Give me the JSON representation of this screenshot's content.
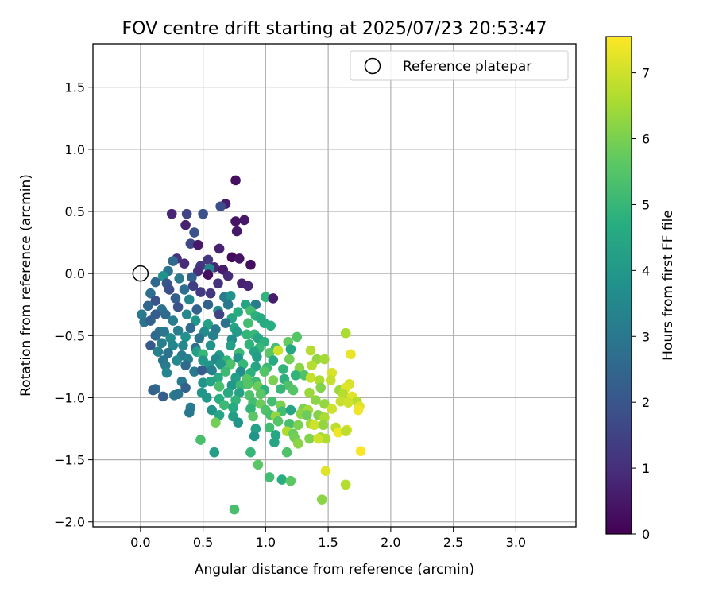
{
  "chart_data": {
    "type": "scatter",
    "title": "FOV centre drift starting at 2025/07/23 20:53:47",
    "xlabel": "Angular distance from reference (arcmin)",
    "ylabel": "Rotation from reference (arcmin)",
    "xlim": [
      -0.38,
      3.48
    ],
    "ylim": [
      -2.04,
      1.85
    ],
    "xticks": [
      0.0,
      0.5,
      1.0,
      1.5,
      2.0,
      2.5,
      3.0
    ],
    "xtick_labels": [
      "0.0",
      "0.5",
      "1.0",
      "1.5",
      "2.0",
      "2.5",
      "3.0"
    ],
    "yticks": [
      1.5,
      1.0,
      0.5,
      0.0,
      -0.5,
      -1.0,
      -1.5,
      -2.0
    ],
    "ytick_labels": [
      "1.5",
      "1.0",
      "0.5",
      "0.0",
      "−0.5",
      "−1.0",
      "−1.5",
      "−2.0"
    ],
    "grid": true,
    "legend": {
      "position": "top-right",
      "entries": [
        {
          "label": "Reference platepar",
          "marker": "open-circle",
          "x": 0.0,
          "y": 0.0
        }
      ]
    },
    "colorbar": {
      "label": "Hours from first FF file",
      "range": [
        0,
        7.55
      ],
      "ticks": [
        0,
        1,
        2,
        3,
        4,
        5,
        6,
        7
      ],
      "tick_labels": [
        "0",
        "1",
        "2",
        "3",
        "4",
        "5",
        "6",
        "7"
      ],
      "colormap": "viridis"
    },
    "points": [
      [
        0.76,
        0.75,
        0.3
      ],
      [
        0.68,
        0.56,
        0.6
      ],
      [
        0.64,
        0.54,
        1.8
      ],
      [
        0.83,
        0.43,
        0.5
      ],
      [
        0.76,
        0.42,
        0.4
      ],
      [
        0.25,
        0.48,
        0.8
      ],
      [
        0.37,
        0.48,
        1.5
      ],
      [
        0.5,
        0.48,
        1.9
      ],
      [
        0.36,
        0.39,
        0.7
      ],
      [
        0.77,
        0.34,
        0.5
      ],
      [
        0.43,
        0.33,
        1.9
      ],
      [
        0.4,
        0.24,
        1.6
      ],
      [
        0.46,
        0.23,
        0.5
      ],
      [
        0.63,
        0.2,
        0.7
      ],
      [
        0.54,
        0.11,
        1.2
      ],
      [
        0.73,
        0.13,
        0.2
      ],
      [
        0.79,
        0.12,
        0.4
      ],
      [
        0.88,
        0.07,
        0.3
      ],
      [
        0.29,
        0.12,
        1.1
      ],
      [
        0.35,
        0.08,
        0.9
      ],
      [
        0.48,
        0.06,
        1.2
      ],
      [
        0.59,
        0.05,
        0.8
      ],
      [
        0.26,
        0.1,
        2.6
      ],
      [
        0.22,
        0.02,
        2.9
      ],
      [
        0.46,
        0.02,
        1.0
      ],
      [
        0.55,
        0.04,
        3.4
      ],
      [
        0.66,
        0.03,
        0.6
      ],
      [
        0.7,
        -0.02,
        0.9
      ],
      [
        0.54,
        -0.01,
        0.3
      ],
      [
        0.41,
        -0.03,
        2.4
      ],
      [
        0.31,
        -0.04,
        3.1
      ],
      [
        0.18,
        -0.02,
        3.8
      ],
      [
        0.21,
        -0.08,
        2.0
      ],
      [
        0.12,
        -0.07,
        2.5
      ],
      [
        0.42,
        -0.1,
        1.4
      ],
      [
        0.62,
        -0.08,
        1.1
      ],
      [
        0.81,
        -0.08,
        0.7
      ],
      [
        0.86,
        -0.1,
        0.8
      ],
      [
        0.08,
        -0.16,
        2.7
      ],
      [
        0.23,
        -0.13,
        1.8
      ],
      [
        0.35,
        -0.13,
        2.7
      ],
      [
        0.48,
        -0.15,
        1.3
      ],
      [
        0.56,
        -0.16,
        1.2
      ],
      [
        0.67,
        -0.19,
        3.1
      ],
      [
        0.72,
        -0.18,
        3.8
      ],
      [
        1.0,
        -0.19,
        4.9
      ],
      [
        1.06,
        -0.2,
        0.6
      ],
      [
        0.12,
        -0.22,
        1.9
      ],
      [
        0.28,
        -0.2,
        2.3
      ],
      [
        0.39,
        -0.21,
        3.4
      ],
      [
        0.54,
        -0.25,
        2.3
      ],
      [
        0.7,
        -0.25,
        3.0
      ],
      [
        0.84,
        -0.25,
        4.4
      ],
      [
        0.92,
        -0.25,
        3.1
      ],
      [
        0.06,
        -0.26,
        2.5
      ],
      [
        0.17,
        -0.29,
        2.8
      ],
      [
        0.3,
        -0.27,
        1.9
      ],
      [
        0.45,
        -0.29,
        2.4
      ],
      [
        0.62,
        -0.3,
        3.6
      ],
      [
        0.78,
        -0.31,
        4.7
      ],
      [
        0.88,
        -0.3,
        5.2
      ],
      [
        0.01,
        -0.33,
        3.1
      ],
      [
        0.12,
        -0.33,
        2.2
      ],
      [
        0.2,
        -0.33,
        2.6
      ],
      [
        0.37,
        -0.33,
        3.5
      ],
      [
        0.63,
        -0.33,
        1.5
      ],
      [
        0.73,
        -0.36,
        4.4
      ],
      [
        0.92,
        -0.34,
        4.8
      ],
      [
        0.96,
        -0.36,
        4.6
      ],
      [
        0.03,
        -0.39,
        2.9
      ],
      [
        0.08,
        -0.38,
        2.3
      ],
      [
        0.26,
        -0.38,
        3.2
      ],
      [
        0.44,
        -0.38,
        3.9
      ],
      [
        0.54,
        -0.41,
        4.3
      ],
      [
        0.68,
        -0.4,
        2.8
      ],
      [
        0.75,
        -0.44,
        4.5
      ],
      [
        0.86,
        -0.4,
        5.2
      ],
      [
        0.99,
        -0.4,
        4.6
      ],
      [
        1.04,
        -0.42,
        4.7
      ],
      [
        0.15,
        -0.47,
        2.7
      ],
      [
        0.19,
        -0.47,
        3.0
      ],
      [
        0.3,
        -0.46,
        3.2
      ],
      [
        0.4,
        -0.44,
        2.6
      ],
      [
        0.51,
        -0.47,
        3.6
      ],
      [
        0.6,
        -0.45,
        3.1
      ],
      [
        0.77,
        -0.47,
        4.1
      ],
      [
        0.85,
        -0.49,
        4.9
      ],
      [
        0.91,
        -0.49,
        5.0
      ],
      [
        0.12,
        -0.5,
        2.6
      ],
      [
        0.24,
        -0.52,
        3.6
      ],
      [
        0.36,
        -0.51,
        3.8
      ],
      [
        0.47,
        -0.52,
        2.9
      ],
      [
        0.58,
        -0.5,
        3.3
      ],
      [
        0.73,
        -0.53,
        3.7
      ],
      [
        0.94,
        -0.52,
        4.4
      ],
      [
        0.99,
        -0.55,
        4.8
      ],
      [
        1.18,
        -0.55,
        5.7
      ],
      [
        1.25,
        -0.51,
        5.5
      ],
      [
        1.64,
        -0.48,
        6.6
      ],
      [
        0.08,
        -0.58,
        2.1
      ],
      [
        0.17,
        -0.56,
        3.2
      ],
      [
        0.26,
        -0.58,
        3.4
      ],
      [
        0.34,
        -0.58,
        3.5
      ],
      [
        0.44,
        -0.6,
        2.7
      ],
      [
        0.56,
        -0.58,
        3.8
      ],
      [
        0.72,
        -0.58,
        4.2
      ],
      [
        0.87,
        -0.57,
        4.9
      ],
      [
        0.95,
        -0.6,
        5.0
      ],
      [
        1.08,
        -0.6,
        5.2
      ],
      [
        1.2,
        -0.61,
        4.5
      ],
      [
        0.14,
        -0.63,
        3.3
      ],
      [
        0.22,
        -0.64,
        2.8
      ],
      [
        0.33,
        -0.66,
        3.1
      ],
      [
        0.45,
        -0.63,
        4.2
      ],
      [
        0.5,
        -0.65,
        5.0
      ],
      [
        0.63,
        -0.66,
        4.1
      ],
      [
        0.79,
        -0.64,
        5.1
      ],
      [
        0.91,
        -0.63,
        4.4
      ],
      [
        1.03,
        -0.64,
        5.6
      ],
      [
        1.1,
        -0.62,
        7.0
      ],
      [
        1.36,
        -0.62,
        6.7
      ],
      [
        1.68,
        -0.65,
        7.3
      ],
      [
        0.18,
        -0.7,
        2.9
      ],
      [
        0.29,
        -0.7,
        3.5
      ],
      [
        0.38,
        -0.69,
        3.3
      ],
      [
        0.5,
        -0.7,
        4.0
      ],
      [
        0.6,
        -0.69,
        3.5
      ],
      [
        0.69,
        -0.7,
        4.9
      ],
      [
        0.78,
        -0.68,
        3.8
      ],
      [
        0.93,
        -0.67,
        4.2
      ],
      [
        1.06,
        -0.7,
        4.6
      ],
      [
        1.19,
        -0.69,
        5.9
      ],
      [
        1.41,
        -0.69,
        6.3
      ],
      [
        1.47,
        -0.69,
        6.5
      ],
      [
        0.2,
        -0.74,
        3.1
      ],
      [
        0.36,
        -0.74,
        2.6
      ],
      [
        0.55,
        -0.74,
        3.9
      ],
      [
        0.64,
        -0.73,
        4.0
      ],
      [
        0.72,
        -0.73,
        5.4
      ],
      [
        0.82,
        -0.73,
        5.0
      ],
      [
        0.92,
        -0.75,
        4.4
      ],
      [
        1.01,
        -0.76,
        5.1
      ],
      [
        1.14,
        -0.77,
        4.9
      ],
      [
        1.27,
        -0.76,
        6.2
      ],
      [
        1.37,
        -0.74,
        6.7
      ],
      [
        0.21,
        -0.8,
        3.4
      ],
      [
        0.43,
        -0.79,
        3.1
      ],
      [
        0.49,
        -0.78,
        2.2
      ],
      [
        0.57,
        -0.78,
        3.3
      ],
      [
        0.68,
        -0.79,
        5.1
      ],
      [
        0.8,
        -0.79,
        3.7
      ],
      [
        0.88,
        -0.8,
        4.8
      ],
      [
        0.99,
        -0.79,
        5.5
      ],
      [
        1.24,
        -0.82,
        4.9
      ],
      [
        1.31,
        -0.82,
        5.4
      ],
      [
        1.36,
        -0.84,
        6.9
      ],
      [
        1.53,
        -0.8,
        7.1
      ],
      [
        0.62,
        -0.84,
        4.6
      ],
      [
        0.76,
        -0.84,
        4.2
      ],
      [
        0.85,
        -0.85,
        5.6
      ],
      [
        0.92,
        -0.87,
        5.1
      ],
      [
        1.06,
        -0.86,
        6.0
      ],
      [
        1.15,
        -0.85,
        4.8
      ],
      [
        1.43,
        -0.86,
        6.6
      ],
      [
        1.52,
        -0.86,
        6.9
      ],
      [
        0.33,
        -0.87,
        3.0
      ],
      [
        0.5,
        -0.88,
        3.9
      ],
      [
        0.56,
        -0.87,
        4.4
      ],
      [
        0.73,
        -0.9,
        4.0
      ],
      [
        0.8,
        -0.9,
        5.1
      ],
      [
        0.86,
        -0.89,
        5.5
      ],
      [
        1.18,
        -0.9,
        5.4
      ],
      [
        1.67,
        -0.89,
        7.1
      ],
      [
        0.36,
        -0.92,
        2.4
      ],
      [
        0.63,
        -0.91,
        5.3
      ],
      [
        0.94,
        -0.91,
        5.8
      ],
      [
        0.99,
        -0.94,
        4.8
      ],
      [
        1.12,
        -0.93,
        5.0
      ],
      [
        1.22,
        -0.94,
        5.5
      ],
      [
        1.44,
        -0.92,
        6.1
      ],
      [
        1.59,
        -0.94,
        6.4
      ],
      [
        1.64,
        -0.92,
        7.2
      ],
      [
        0.12,
        -0.93,
        2.6
      ],
      [
        0.1,
        -0.94,
        2.4
      ],
      [
        0.27,
        -0.98,
        3.0
      ],
      [
        0.49,
        -0.96,
        4.0
      ],
      [
        0.7,
        -0.96,
        4.6
      ],
      [
        0.79,
        -0.96,
        4.3
      ],
      [
        0.87,
        -0.98,
        5.4
      ],
      [
        0.96,
        -0.97,
        5.6
      ],
      [
        1.35,
        -0.96,
        6.4
      ],
      [
        1.62,
        -0.97,
        6.7
      ],
      [
        1.69,
        -0.99,
        7.2
      ],
      [
        1.73,
        -1.03,
        6.7
      ],
      [
        0.18,
        -0.99,
        2.2
      ],
      [
        0.3,
        -0.97,
        2.9
      ],
      [
        0.53,
        -1.0,
        4.0
      ],
      [
        0.63,
        -1.01,
        4.7
      ],
      [
        0.76,
        -1.02,
        4.9
      ],
      [
        0.9,
        -1.04,
        5.2
      ],
      [
        0.96,
        -1.05,
        5.8
      ],
      [
        1.05,
        -1.03,
        5.2
      ],
      [
        1.12,
        -1.06,
        6.0
      ],
      [
        1.4,
        -1.02,
        6.2
      ],
      [
        1.47,
        -1.05,
        6.3
      ],
      [
        1.6,
        -1.03,
        6.9
      ],
      [
        1.66,
        -1.04,
        7.0
      ],
      [
        1.75,
        -1.07,
        7.2
      ],
      [
        0.4,
        -1.08,
        3.1
      ],
      [
        0.57,
        -1.1,
        3.9
      ],
      [
        0.67,
        -1.06,
        5.1
      ],
      [
        0.74,
        -1.08,
        4.6
      ],
      [
        0.88,
        -1.09,
        4.9
      ],
      [
        1.0,
        -1.1,
        5.4
      ],
      [
        1.13,
        -1.11,
        5.2
      ],
      [
        1.2,
        -1.1,
        4.4
      ],
      [
        1.3,
        -1.09,
        6.0
      ],
      [
        1.34,
        -1.1,
        6.5
      ],
      [
        1.53,
        -1.09,
        7.0
      ],
      [
        1.74,
        -1.1,
        7.4
      ],
      [
        0.39,
        -1.12,
        3.0
      ],
      [
        0.63,
        -1.14,
        4.4
      ],
      [
        0.74,
        -1.15,
        4.2
      ],
      [
        0.9,
        -1.15,
        5.6
      ],
      [
        1.04,
        -1.14,
        5.3
      ],
      [
        1.08,
        -1.15,
        6.3
      ],
      [
        1.28,
        -1.13,
        6.2
      ],
      [
        1.33,
        -1.14,
        5.8
      ],
      [
        1.42,
        -1.14,
        6.1
      ],
      [
        1.47,
        -1.16,
        6.6
      ],
      [
        0.78,
        -1.2,
        3.9
      ],
      [
        0.6,
        -1.2,
        5.9
      ],
      [
        1.1,
        -1.19,
        5.5
      ],
      [
        1.19,
        -1.21,
        5.3
      ],
      [
        1.26,
        -1.22,
        6.0
      ],
      [
        1.36,
        -1.21,
        6.5
      ],
      [
        1.39,
        -1.22,
        7.0
      ],
      [
        1.46,
        -1.22,
        6.3
      ],
      [
        1.56,
        -1.24,
        6.8
      ],
      [
        1.65,
        -1.26,
        7.1
      ],
      [
        0.92,
        -1.25,
        4.3
      ],
      [
        1.03,
        -1.24,
        5.2
      ],
      [
        1.17,
        -1.27,
        6.6
      ],
      [
        1.22,
        -1.29,
        5.8
      ],
      [
        1.58,
        -1.28,
        7.4
      ],
      [
        1.64,
        -1.27,
        6.8
      ],
      [
        0.91,
        -1.31,
        3.9
      ],
      [
        1.08,
        -1.3,
        4.5
      ],
      [
        1.23,
        -1.32,
        5.9
      ],
      [
        1.35,
        -1.33,
        6.1
      ],
      [
        1.44,
        -1.32,
        6.4
      ],
      [
        1.48,
        -1.33,
        6.6
      ],
      [
        0.48,
        -1.34,
        5.3
      ],
      [
        1.07,
        -1.36,
        4.4
      ],
      [
        1.26,
        -1.37,
        6.2
      ],
      [
        1.42,
        -1.33,
        7.0
      ],
      [
        0.59,
        -1.44,
        4.2
      ],
      [
        0.88,
        -1.44,
        5.0
      ],
      [
        1.17,
        -1.44,
        5.4
      ],
      [
        1.76,
        -1.43,
        7.5
      ],
      [
        0.94,
        -1.54,
        5.6
      ],
      [
        1.48,
        -1.59,
        7.2
      ],
      [
        1.03,
        -1.64,
        5.2
      ],
      [
        1.13,
        -1.66,
        4.7
      ],
      [
        1.2,
        -1.67,
        5.6
      ],
      [
        1.64,
        -1.7,
        6.7
      ],
      [
        1.45,
        -1.82,
        6.2
      ],
      [
        0.75,
        -1.9,
        5.3
      ]
    ]
  }
}
